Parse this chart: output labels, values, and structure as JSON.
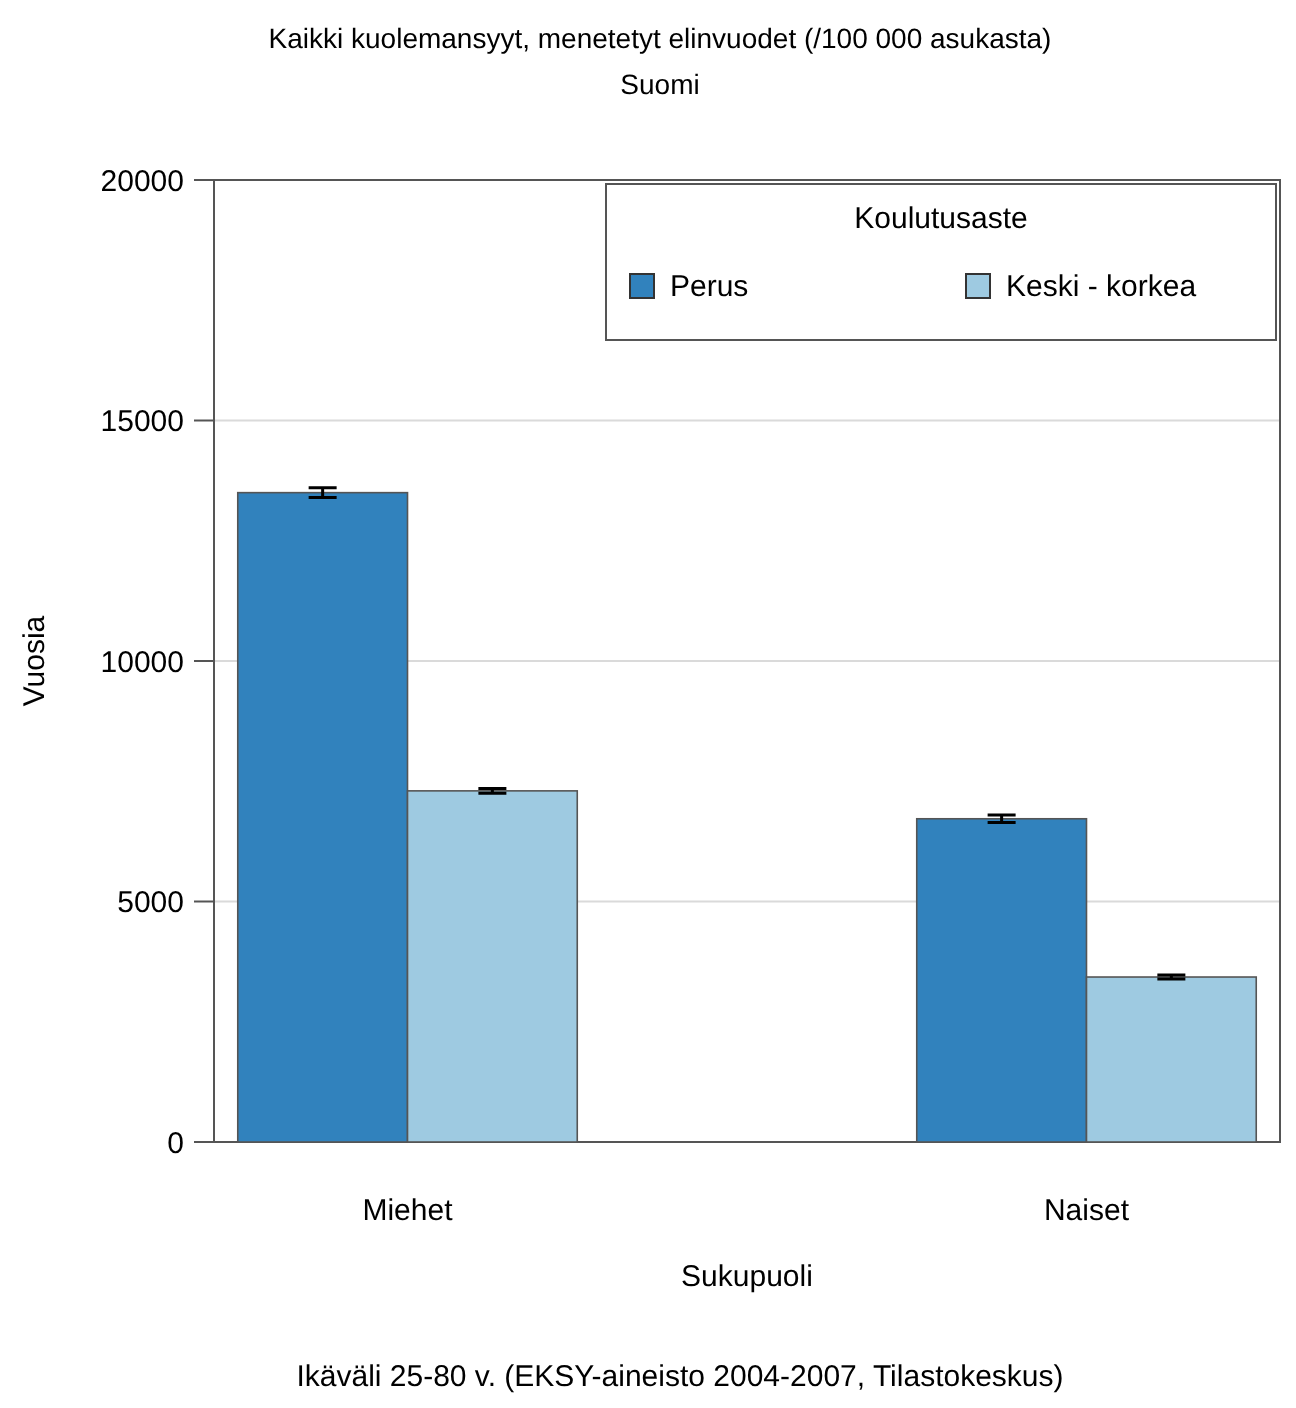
{
  "chart_data": {
    "type": "bar",
    "title": "Kaikki kuolemansyyt, menetetyt elinvuodet (/100 000 asukasta)",
    "subtitle": "Suomi",
    "xlabel": "Sukupuoli",
    "ylabel": "Vuosia",
    "legend_title": "Koulutusaste",
    "annotations": [
      "Ikäväli 25-80 v. (EKSY-aineisto 2004-2007, Tilastokeskus)"
    ],
    "categories": [
      "Miehet",
      "Naiset"
    ],
    "series": [
      {
        "name": "Perus",
        "color": "#3182bd",
        "values": [
          13500,
          6720
        ],
        "errors": [
          100,
          80
        ]
      },
      {
        "name": "Keski - korkea",
        "color": "#9ecae1",
        "values": [
          7300,
          3430
        ],
        "errors": [
          50,
          40
        ]
      }
    ],
    "ylim": [
      0,
      20000
    ],
    "yticks": [
      0,
      5000,
      10000,
      15000,
      20000
    ],
    "grid": "y",
    "legend": "top right"
  }
}
